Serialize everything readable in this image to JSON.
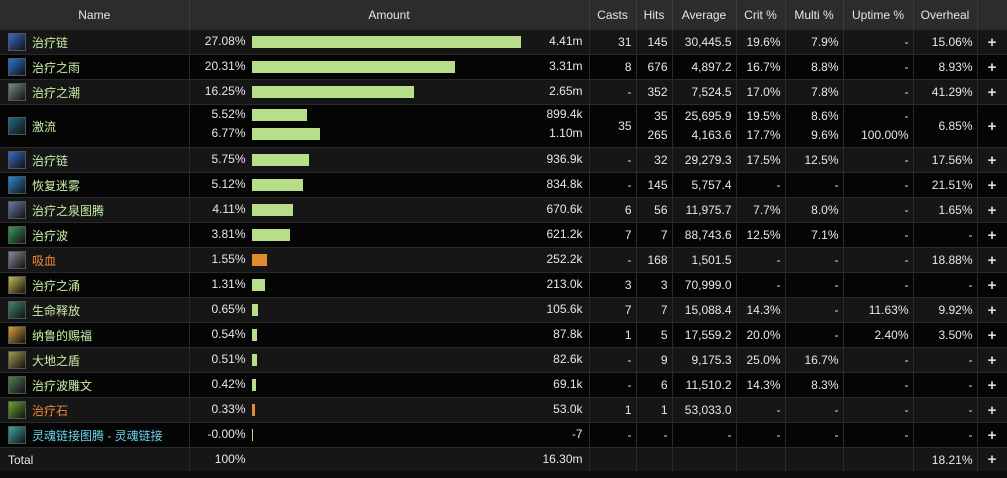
{
  "headers": {
    "name": "Name",
    "amount": "Amount",
    "casts": "Casts",
    "hits": "Hits",
    "average": "Average",
    "crit": "Crit %",
    "multi": "Multi %",
    "uptime": "Uptime %",
    "overheal": "Overheal"
  },
  "expand_symbol": "+",
  "colors": {
    "bar_green": "#b8de8a",
    "bar_orange": "#e08b2e"
  },
  "rows": [
    {
      "name": "治疗链",
      "color": "name-green",
      "icon": "chain-heal-icon",
      "icon_bg": "#3a6ac8",
      "lines": [
        {
          "pct": "27.08%",
          "bar": 0.27,
          "bar_color": "green",
          "amount": "4.41m",
          "casts": "31",
          "hits": "145",
          "average": "30,445.5",
          "crit": "19.6%",
          "multi": "7.9%",
          "uptime": "-",
          "overheal": "15.06%"
        }
      ]
    },
    {
      "name": "治疗之雨",
      "color": "name-green",
      "icon": "healing-rain-icon",
      "icon_bg": "#2a74d8",
      "lines": [
        {
          "pct": "20.31%",
          "bar": 0.2031,
          "bar_color": "green",
          "amount": "3.31m",
          "casts": "8",
          "hits": "676",
          "average": "4,897.2",
          "crit": "16.7%",
          "multi": "8.8%",
          "uptime": "-",
          "overheal": "8.93%"
        }
      ]
    },
    {
      "name": "治疗之潮",
      "color": "name-green",
      "icon": "healing-tide-icon",
      "icon_bg": "#7a8a8a",
      "lines": [
        {
          "pct": "16.25%",
          "bar": 0.1625,
          "bar_color": "green",
          "amount": "2.65m",
          "casts": "-",
          "hits": "352",
          "average": "7,524.5",
          "crit": "17.0%",
          "multi": "7.8%",
          "uptime": "-",
          "overheal": "41.29%"
        }
      ]
    },
    {
      "name": "激流",
      "color": "name-green",
      "icon": "riptide-icon",
      "icon_bg": "#1e6a82",
      "lines": [
        {
          "pct": "5.52%",
          "bar": 0.0552,
          "bar_color": "green",
          "amount": "899.4k",
          "casts": "35",
          "hits": "35",
          "average": "25,695.9",
          "crit": "19.5%",
          "multi": "8.6%",
          "uptime": "-",
          "overheal": "6.85%"
        },
        {
          "pct": "6.77%",
          "bar": 0.0677,
          "bar_color": "green",
          "amount": "1.10m",
          "casts": "",
          "hits": "265",
          "average": "4,163.6",
          "crit": "17.7%",
          "multi": "9.6%",
          "uptime": "100.00%",
          "overheal": ""
        }
      ]
    },
    {
      "name": "治疗链",
      "color": "name-green",
      "icon": "chain-heal-icon",
      "icon_bg": "#3a6ac8",
      "lines": [
        {
          "pct": "5.75%",
          "bar": 0.0575,
          "bar_color": "green",
          "amount": "936.9k",
          "casts": "-",
          "hits": "32",
          "average": "29,279.3",
          "crit": "17.5%",
          "multi": "12.5%",
          "uptime": "-",
          "overheal": "17.56%"
        }
      ]
    },
    {
      "name": "恢复迷雾",
      "color": "name-green",
      "icon": "restorative-mists-icon",
      "icon_bg": "#2a8ad8",
      "lines": [
        {
          "pct": "5.12%",
          "bar": 0.0512,
          "bar_color": "green",
          "amount": "834.8k",
          "casts": "-",
          "hits": "145",
          "average": "5,757.4",
          "crit": "-",
          "multi": "-",
          "uptime": "-",
          "overheal": "21.51%"
        }
      ]
    },
    {
      "name": "治疗之泉图腾",
      "color": "name-green",
      "icon": "healing-stream-totem-icon",
      "icon_bg": "#6a7aa8",
      "lines": [
        {
          "pct": "4.11%",
          "bar": 0.0411,
          "bar_color": "green",
          "amount": "670.6k",
          "casts": "6",
          "hits": "56",
          "average": "11,975.7",
          "crit": "7.7%",
          "multi": "8.0%",
          "uptime": "-",
          "overheal": "1.65%"
        }
      ]
    },
    {
      "name": "治疗波",
      "color": "name-green",
      "icon": "healing-wave-icon",
      "icon_bg": "#3a9a5a",
      "lines": [
        {
          "pct": "3.81%",
          "bar": 0.0381,
          "bar_color": "green",
          "amount": "621.2k",
          "casts": "7",
          "hits": "7",
          "average": "88,743.6",
          "crit": "12.5%",
          "multi": "7.1%",
          "uptime": "-",
          "overheal": "-"
        }
      ]
    },
    {
      "name": "吸血",
      "color": "name-orange",
      "icon": "leech-icon",
      "icon_bg": "#8a8a9a",
      "lines": [
        {
          "pct": "1.55%",
          "bar": 0.0155,
          "bar_color": "orange",
          "amount": "252.2k",
          "casts": "-",
          "hits": "168",
          "average": "1,501.5",
          "crit": "-",
          "multi": "-",
          "uptime": "-",
          "overheal": "18.88%"
        }
      ]
    },
    {
      "name": "治疗之涌",
      "color": "name-green",
      "icon": "healing-surge-icon",
      "icon_bg": "#c8b850",
      "lines": [
        {
          "pct": "1.31%",
          "bar": 0.0131,
          "bar_color": "green",
          "amount": "213.0k",
          "casts": "3",
          "hits": "3",
          "average": "70,999.0",
          "crit": "-",
          "multi": "-",
          "uptime": "-",
          "overheal": "-"
        }
      ]
    },
    {
      "name": "生命释放",
      "color": "name-green",
      "icon": "unleash-life-icon",
      "icon_bg": "#3a8a6a",
      "lines": [
        {
          "pct": "0.65%",
          "bar": 0.0065,
          "bar_color": "green",
          "amount": "105.6k",
          "casts": "7",
          "hits": "7",
          "average": "15,088.4",
          "crit": "14.3%",
          "multi": "-",
          "uptime": "11.63%",
          "overheal": "9.92%"
        }
      ]
    },
    {
      "name": "纳鲁的赐福",
      "color": "name-green",
      "icon": "gift-of-the-naaru-icon",
      "icon_bg": "#d8a030",
      "lines": [
        {
          "pct": "0.54%",
          "bar": 0.0054,
          "bar_color": "green",
          "amount": "87.8k",
          "casts": "1",
          "hits": "5",
          "average": "17,559.2",
          "crit": "20.0%",
          "multi": "-",
          "uptime": "2.40%",
          "overheal": "3.50%"
        }
      ]
    },
    {
      "name": "大地之盾",
      "color": "name-green",
      "icon": "earth-shield-icon",
      "icon_bg": "#a89a50",
      "lines": [
        {
          "pct": "0.51%",
          "bar": 0.0051,
          "bar_color": "green",
          "amount": "82.6k",
          "casts": "-",
          "hits": "9",
          "average": "9,175.3",
          "crit": "25.0%",
          "multi": "16.7%",
          "uptime": "-",
          "overheal": "-"
        }
      ]
    },
    {
      "name": "治疗波雕文",
      "color": "name-green",
      "icon": "glyph-healing-wave-icon",
      "icon_bg": "#5a7a5a",
      "lines": [
        {
          "pct": "0.42%",
          "bar": 0.0042,
          "bar_color": "green",
          "amount": "69.1k",
          "casts": "-",
          "hits": "6",
          "average": "11,510.2",
          "crit": "14.3%",
          "multi": "8.3%",
          "uptime": "-",
          "overheal": "-"
        }
      ]
    },
    {
      "name": "治疗石",
      "color": "name-orange",
      "icon": "healthstone-icon",
      "icon_bg": "#6aa830",
      "lines": [
        {
          "pct": "0.33%",
          "bar": 0.0033,
          "bar_color": "orange",
          "amount": "53.0k",
          "casts": "1",
          "hits": "1",
          "average": "53,033.0",
          "crit": "-",
          "multi": "-",
          "uptime": "-",
          "overheal": "-"
        }
      ]
    },
    {
      "name": "灵魂链接图腾 - 灵魂链接",
      "color": "name-cyan",
      "icon": "spirit-link-totem-icon",
      "icon_bg": "#3aa8a0",
      "lines": [
        {
          "pct": "-0.00%",
          "bar": 0.0005,
          "bar_color": "green",
          "amount": "-7",
          "casts": "-",
          "hits": "-",
          "average": "-",
          "crit": "-",
          "multi": "-",
          "uptime": "-",
          "overheal": "-"
        }
      ]
    }
  ],
  "total": {
    "label": "Total",
    "pct": "100%",
    "amount": "16.30m",
    "overheal": "18.21%"
  }
}
